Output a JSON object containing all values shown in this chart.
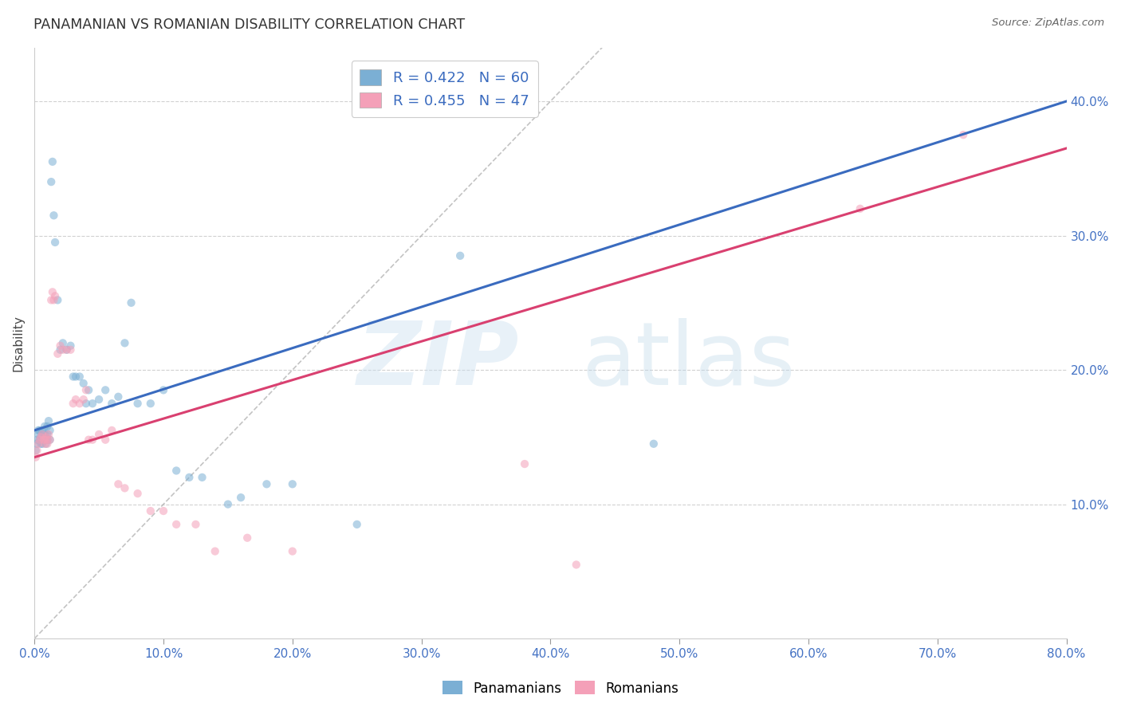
{
  "title": "PANAMANIAN VS ROMANIAN DISABILITY CORRELATION CHART",
  "source": "Source: ZipAtlas.com",
  "ylabel": "Disability",
  "xlim": [
    0.0,
    0.8
  ],
  "ylim": [
    0.0,
    0.44
  ],
  "yticks": [
    0.1,
    0.2,
    0.3,
    0.4
  ],
  "yticklabels": [
    "10.0%",
    "20.0%",
    "30.0%",
    "40.0%"
  ],
  "xticks": [
    0.0,
    0.1,
    0.2,
    0.3,
    0.4,
    0.5,
    0.6,
    0.7,
    0.8
  ],
  "xticklabels": [
    "0.0%",
    "10.0%",
    "20.0%",
    "30.0%",
    "40.0%",
    "50.0%",
    "60.0%",
    "70.0%",
    "80.0%"
  ],
  "blue_color": "#7bafd4",
  "pink_color": "#f4a0b8",
  "blue_line_color": "#3a6bbf",
  "pink_line_color": "#d94070",
  "scatter_alpha": 0.55,
  "scatter_size": 55,
  "pan_x": [
    0.001,
    0.002,
    0.002,
    0.003,
    0.003,
    0.004,
    0.004,
    0.005,
    0.005,
    0.006,
    0.006,
    0.006,
    0.007,
    0.007,
    0.008,
    0.008,
    0.008,
    0.009,
    0.009,
    0.01,
    0.01,
    0.01,
    0.011,
    0.012,
    0.012,
    0.013,
    0.014,
    0.015,
    0.016,
    0.018,
    0.02,
    0.022,
    0.025,
    0.028,
    0.03,
    0.032,
    0.035,
    0.038,
    0.04,
    0.042,
    0.045,
    0.05,
    0.055,
    0.06,
    0.065,
    0.07,
    0.075,
    0.08,
    0.09,
    0.1,
    0.11,
    0.12,
    0.13,
    0.15,
    0.16,
    0.18,
    0.2,
    0.25,
    0.33,
    0.48
  ],
  "pan_y": [
    0.14,
    0.145,
    0.148,
    0.152,
    0.155,
    0.148,
    0.155,
    0.145,
    0.15,
    0.145,
    0.15,
    0.155,
    0.148,
    0.152,
    0.148,
    0.152,
    0.158,
    0.145,
    0.15,
    0.148,
    0.152,
    0.158,
    0.162,
    0.155,
    0.148,
    0.34,
    0.355,
    0.315,
    0.295,
    0.252,
    0.215,
    0.22,
    0.215,
    0.218,
    0.195,
    0.195,
    0.195,
    0.19,
    0.175,
    0.185,
    0.175,
    0.178,
    0.185,
    0.175,
    0.18,
    0.22,
    0.25,
    0.175,
    0.175,
    0.185,
    0.125,
    0.12,
    0.12,
    0.1,
    0.105,
    0.115,
    0.115,
    0.085,
    0.285,
    0.145
  ],
  "rom_x": [
    0.001,
    0.002,
    0.003,
    0.004,
    0.005,
    0.006,
    0.007,
    0.008,
    0.008,
    0.009,
    0.01,
    0.01,
    0.011,
    0.012,
    0.013,
    0.014,
    0.015,
    0.016,
    0.018,
    0.02,
    0.022,
    0.025,
    0.028,
    0.03,
    0.032,
    0.035,
    0.038,
    0.04,
    0.042,
    0.045,
    0.05,
    0.055,
    0.06,
    0.065,
    0.07,
    0.08,
    0.09,
    0.1,
    0.11,
    0.125,
    0.14,
    0.165,
    0.2,
    0.38,
    0.42,
    0.64,
    0.72
  ],
  "rom_y": [
    0.135,
    0.14,
    0.145,
    0.148,
    0.15,
    0.152,
    0.148,
    0.145,
    0.148,
    0.15,
    0.145,
    0.148,
    0.152,
    0.148,
    0.252,
    0.258,
    0.252,
    0.255,
    0.212,
    0.218,
    0.215,
    0.215,
    0.215,
    0.175,
    0.178,
    0.175,
    0.178,
    0.185,
    0.148,
    0.148,
    0.152,
    0.148,
    0.155,
    0.115,
    0.112,
    0.108,
    0.095,
    0.095,
    0.085,
    0.085,
    0.065,
    0.075,
    0.065,
    0.13,
    0.055,
    0.32,
    0.375
  ],
  "legend_label_blue": "R = 0.422   N = 60",
  "legend_label_pink": "R = 0.455   N = 47",
  "legend_bottom_blue": "Panamanians",
  "legend_bottom_pink": "Romanians",
  "diag_line_end": 0.44
}
